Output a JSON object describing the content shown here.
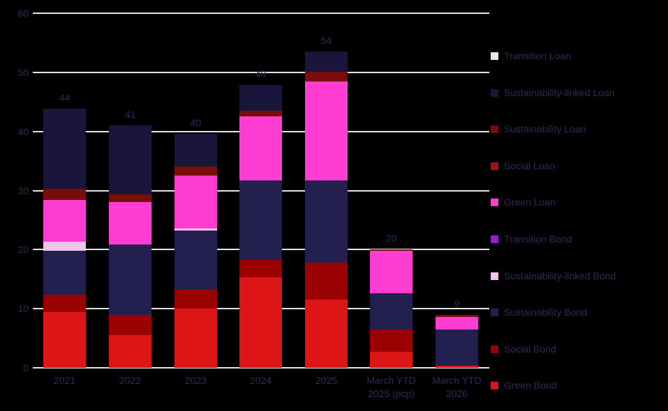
{
  "chart_data": {
    "type": "bar",
    "stacked": true,
    "title": "",
    "xlabel": "",
    "ylabel": "",
    "background_color": "#000000",
    "gridline_color": "#E5E5E5",
    "text_color": "#2E2957",
    "grid": true,
    "legend_position": "right",
    "ylim": [
      0,
      60
    ],
    "yticks": [
      0,
      10,
      20,
      30,
      40,
      50,
      60
    ],
    "categories": [
      "2021",
      "2022",
      "2023",
      "2024",
      "2025",
      "March YTD\n2025 (pcp)",
      "March YTD\n2026"
    ],
    "totals": [
      44,
      41,
      40,
      48,
      54,
      20,
      9
    ],
    "series": [
      {
        "name": "Green Bond",
        "color": "#DC1616",
        "values": [
          9.4,
          5.5,
          10.0,
          15.3,
          11.5,
          2.7,
          0.4
        ]
      },
      {
        "name": "Social Bond",
        "color": "#9A0202",
        "values": [
          3.0,
          3.4,
          3.3,
          3.0,
          6.3,
          3.8,
          0
        ]
      },
      {
        "name": "Sustainability Bond",
        "color": "#23204F",
        "values": [
          7.4,
          12.0,
          9.9,
          13.4,
          13.9,
          6.1,
          6.1
        ]
      },
      {
        "name": "Sustainability-linked Bond",
        "color": "#EFC3EC",
        "values": [
          1.5,
          0,
          0.4,
          0,
          0,
          0,
          0
        ]
      },
      {
        "name": "Transition Bond",
        "color": "#9C17DB",
        "values": [
          0,
          0,
          0,
          0,
          0,
          0,
          0
        ]
      },
      {
        "name": "Green Loan",
        "color": "#FF3DD3",
        "values": [
          7.1,
          7.1,
          8.9,
          10.9,
          16.8,
          7.2,
          2.1
        ]
      },
      {
        "name": "Social Loan",
        "color": "#A31212",
        "values": [
          0,
          0,
          0,
          0,
          0,
          0,
          0
        ]
      },
      {
        "name": "Sustainability Loan",
        "color": "#7A0C0A",
        "values": [
          1.9,
          1.4,
          1.6,
          0.9,
          1.6,
          0.2,
          0.4
        ]
      },
      {
        "name": "Sustainability-linked Loan",
        "color": "#1A163B",
        "values": [
          13.5,
          11.6,
          5.5,
          4.4,
          3.4,
          0,
          0
        ]
      },
      {
        "name": "Transition Loan",
        "color": "#E8E8E8",
        "values": [
          0,
          0,
          0,
          0,
          0,
          0,
          0
        ]
      }
    ],
    "legend_order_top_to_bottom": [
      "Transition Loan",
      "Sustainability-linked Loan",
      "Sustainability Loan",
      "Social Loan",
      "Green Loan",
      "Transition Bond",
      "Sustainability-linked Bond",
      "Sustainability Bond",
      "Social Bond",
      "Green Bond"
    ]
  }
}
